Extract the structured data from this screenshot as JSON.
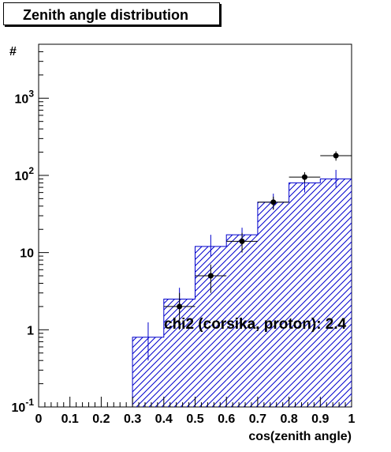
{
  "chart_data": {
    "type": "histogram",
    "title": "Zenith angle distribution",
    "xlabel": "cos(zenith angle)",
    "ylabel": "#",
    "annotation": "chi2 (corsika, proton): 2.4",
    "x_range": [
      0,
      1
    ],
    "y_range": [
      0.1,
      5000
    ],
    "y_scale": "log",
    "x_ticks": [
      "0",
      "0.1",
      "0.2",
      "0.3",
      "0.4",
      "0.5",
      "0.6",
      "0.7",
      "0.8",
      "0.9",
      "1"
    ],
    "y_ticks": [
      {
        "value": 0.1,
        "base": "10",
        "exp": "-1"
      },
      {
        "value": 1,
        "base": "1",
        "exp": ""
      },
      {
        "value": 10,
        "base": "10",
        "exp": ""
      },
      {
        "value": 100,
        "base": "10",
        "exp": "2"
      },
      {
        "value": 1000,
        "base": "10",
        "exp": "3"
      }
    ],
    "simulation": {
      "name": "corsika, proton",
      "color": "#0000cc",
      "fill": "hatched",
      "bins": [
        {
          "lo": 0.3,
          "hi": 0.4,
          "value": 0.8,
          "err_lo": 0.4,
          "err_hi": 1.25
        },
        {
          "lo": 0.4,
          "hi": 0.5,
          "value": 2.5,
          "err_lo": 1.6,
          "err_hi": 3.5
        },
        {
          "lo": 0.5,
          "hi": 0.6,
          "value": 12,
          "err_lo": 9,
          "err_hi": 17
        },
        {
          "lo": 0.6,
          "hi": 0.7,
          "value": 17,
          "err_lo": 14,
          "err_hi": 21
        },
        {
          "lo": 0.7,
          "hi": 0.8,
          "value": 45,
          "err_lo": 36,
          "err_hi": 58
        },
        {
          "lo": 0.8,
          "hi": 0.9,
          "value": 80,
          "err_lo": 60,
          "err_hi": 100
        },
        {
          "lo": 0.9,
          "hi": 1.0,
          "value": 90,
          "err_lo": 70,
          "err_hi": 118
        }
      ]
    },
    "data": {
      "color": "#000000",
      "points": [
        {
          "x": 0.45,
          "y": 2.0,
          "y_lo": 1.0,
          "y_hi": 3.0
        },
        {
          "x": 0.55,
          "y": 5.0,
          "y_lo": 3.0,
          "y_hi": 7.0
        },
        {
          "x": 0.65,
          "y": 14,
          "y_lo": 10,
          "y_hi": 18
        },
        {
          "x": 0.75,
          "y": 45,
          "y_lo": 36,
          "y_hi": 53
        },
        {
          "x": 0.85,
          "y": 95,
          "y_lo": 80,
          "y_hi": 110
        },
        {
          "x": 0.95,
          "y": 180,
          "y_lo": 155,
          "y_hi": 205
        }
      ]
    }
  }
}
